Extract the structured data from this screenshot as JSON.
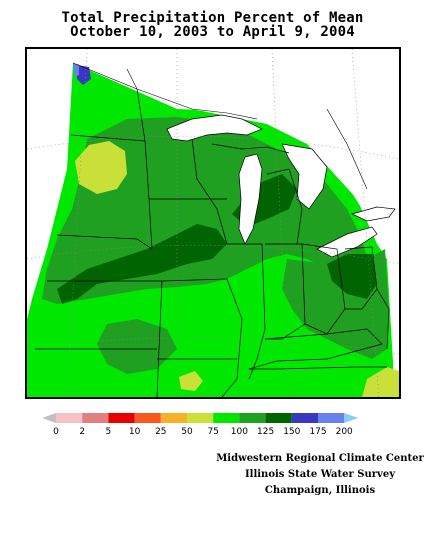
{
  "title": {
    "line1": "Total Precipitation Percent of Mean",
    "line2": "October 10, 2003 to April 9, 2004"
  },
  "legend": {
    "labels": [
      "0",
      "2",
      "5",
      "10",
      "25",
      "50",
      "75",
      "100",
      "125",
      "150",
      "175",
      "200"
    ],
    "colors": [
      "#c0c0c0",
      "#f7c0c4",
      "#e08080",
      "#e80000",
      "#f85820",
      "#f8b028",
      "#c8e038",
      "#00e800",
      "#20a020",
      "#006400",
      "#3838c0",
      "#6880f0",
      "#88ccf8"
    ]
  },
  "credits": {
    "line1": "Midwestern Regional Climate Center",
    "line2": "Illinois State Water Survey",
    "line3": "Champaign, Illinois"
  },
  "map_colors": {
    "green_bright": "#00e800",
    "green_mid": "#20a020",
    "green_dark": "#006400",
    "yellow_green": "#c8e038",
    "blue": "#3838c0",
    "blue_light": "#6880f0",
    "water": "#ffffff"
  }
}
